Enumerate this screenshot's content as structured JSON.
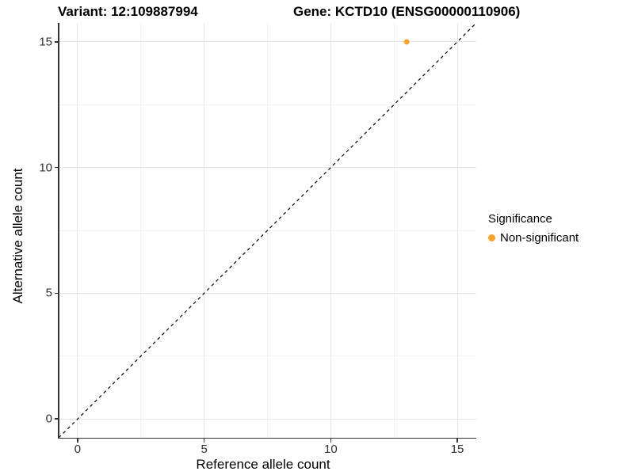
{
  "chart_data": {
    "type": "scatter",
    "title_left": "Variant: 12:109887994",
    "title_right": "Gene: KCTD10 (ENSG00000110906)",
    "xlabel": "Reference allele count",
    "ylabel": "Alternative allele count",
    "xlim": [
      -0.75,
      15.75
    ],
    "ylim": [
      -0.75,
      15.75
    ],
    "x_ticks": [
      0,
      5,
      10,
      15
    ],
    "y_ticks": [
      0,
      5,
      10,
      15
    ],
    "minor_ticks": [
      2.5,
      7.5,
      12.5
    ],
    "grid": true,
    "reference_line": {
      "kind": "identity",
      "style": "dashed",
      "color": "#000000"
    },
    "series": [
      {
        "name": "Non-significant",
        "color": "#F8A42B",
        "points": [
          {
            "x": 13,
            "y": 15
          }
        ]
      }
    ],
    "legend": {
      "position": "right",
      "title": "Significance",
      "entries": [
        {
          "label": "Non-significant",
          "color": "#F8A42B"
        }
      ]
    }
  }
}
